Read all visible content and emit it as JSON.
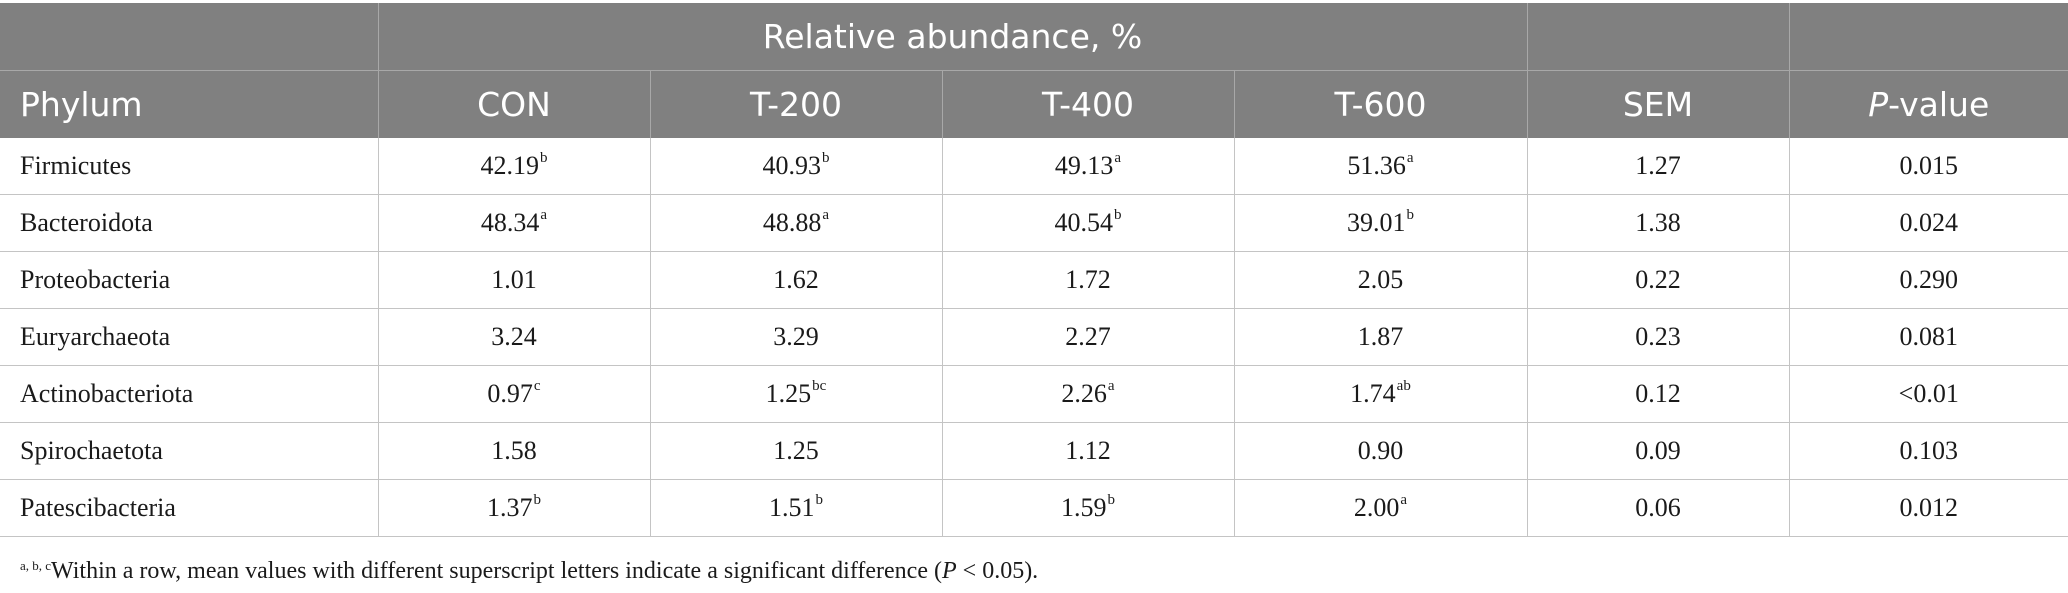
{
  "table": {
    "group_header": "Relative abundance, %",
    "columns": {
      "phylum": "Phylum",
      "con": "CON",
      "t200": "T-200",
      "t400": "T-400",
      "t600": "T-600",
      "sem": "SEM",
      "p_italic": "P",
      "p_rest": "-value"
    },
    "rows": [
      {
        "phylum": "Firmicutes",
        "con": "42.19",
        "con_sup": "b",
        "t200": "40.93",
        "t200_sup": "b",
        "t400": "49.13",
        "t400_sup": "a",
        "t600": "51.36",
        "t600_sup": "a",
        "sem": "1.27",
        "p": "0.015"
      },
      {
        "phylum": "Bacteroidota",
        "con": "48.34",
        "con_sup": "a",
        "t200": "48.88",
        "t200_sup": "a",
        "t400": "40.54",
        "t400_sup": "b",
        "t600": "39.01",
        "t600_sup": "b",
        "sem": "1.38",
        "p": "0.024"
      },
      {
        "phylum": "Proteobacteria",
        "con": "1.01",
        "con_sup": "",
        "t200": "1.62",
        "t200_sup": "",
        "t400": "1.72",
        "t400_sup": "",
        "t600": "2.05",
        "t600_sup": "",
        "sem": "0.22",
        "p": "0.290"
      },
      {
        "phylum": "Euryarchaeota",
        "con": "3.24",
        "con_sup": "",
        "t200": "3.29",
        "t200_sup": "",
        "t400": "2.27",
        "t400_sup": "",
        "t600": "1.87",
        "t600_sup": "",
        "sem": "0.23",
        "p": "0.081"
      },
      {
        "phylum": "Actinobacteriota",
        "con": "0.97",
        "con_sup": "c",
        "t200": "1.25",
        "t200_sup": "bc",
        "t400": "2.26",
        "t400_sup": "a",
        "t600": "1.74",
        "t600_sup": "ab",
        "sem": "0.12",
        "p": "<0.01"
      },
      {
        "phylum": "Spirochaetota",
        "con": "1.58",
        "con_sup": "",
        "t200": "1.25",
        "t200_sup": "",
        "t400": "1.12",
        "t400_sup": "",
        "t600": "0.90",
        "t600_sup": "",
        "sem": "0.09",
        "p": "0.103"
      },
      {
        "phylum": "Patescibacteria",
        "con": "1.37",
        "con_sup": "b",
        "t200": "1.51",
        "t200_sup": "b",
        "t400": "1.59",
        "t400_sup": "b",
        "t600": "2.00",
        "t600_sup": "a",
        "sem": "0.06",
        "p": "0.012"
      }
    ]
  },
  "footnote": {
    "sup": "a, b, c",
    "text_before": "Within a row, mean values with different superscript letters indicate a significant difference (",
    "p_italic": "P",
    "text_after": " < 0.05)."
  }
}
